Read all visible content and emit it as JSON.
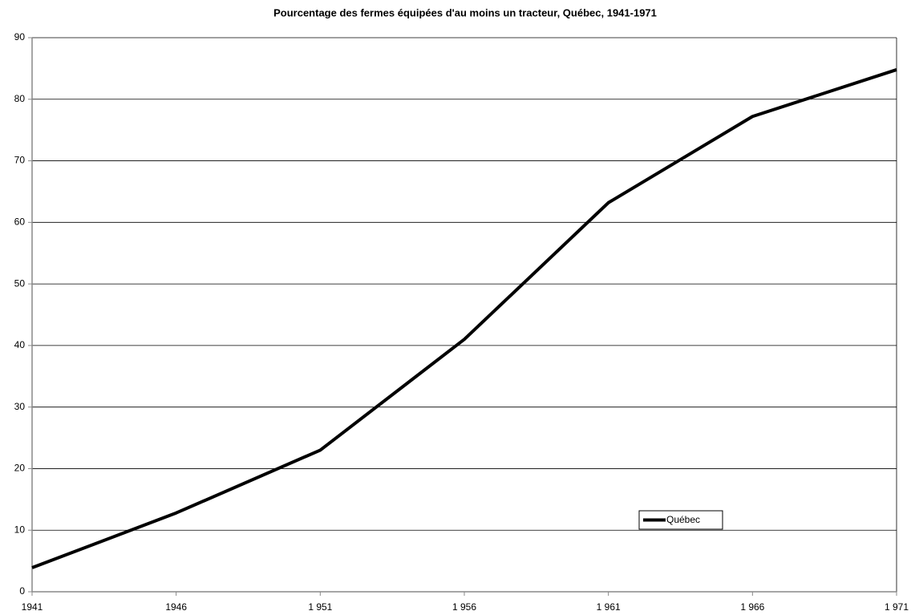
{
  "chart_data": {
    "type": "line",
    "title": "Pourcentage des fermes équipées d'au moins un tracteur, Québec, 1941-1971",
    "categories": [
      "1941",
      "1946",
      "1 951",
      "1 956",
      "1 961",
      "1 966",
      "1 971"
    ],
    "series": [
      {
        "name": "Québec",
        "color": "#000000",
        "values": [
          3.9,
          12.8,
          23.0,
          41.0,
          63.2,
          77.2,
          84.8
        ]
      }
    ],
    "ylim": [
      0,
      90
    ],
    "yticks": [
      0,
      10,
      20,
      30,
      40,
      50,
      60,
      70,
      80,
      90
    ],
    "grid": true
  }
}
